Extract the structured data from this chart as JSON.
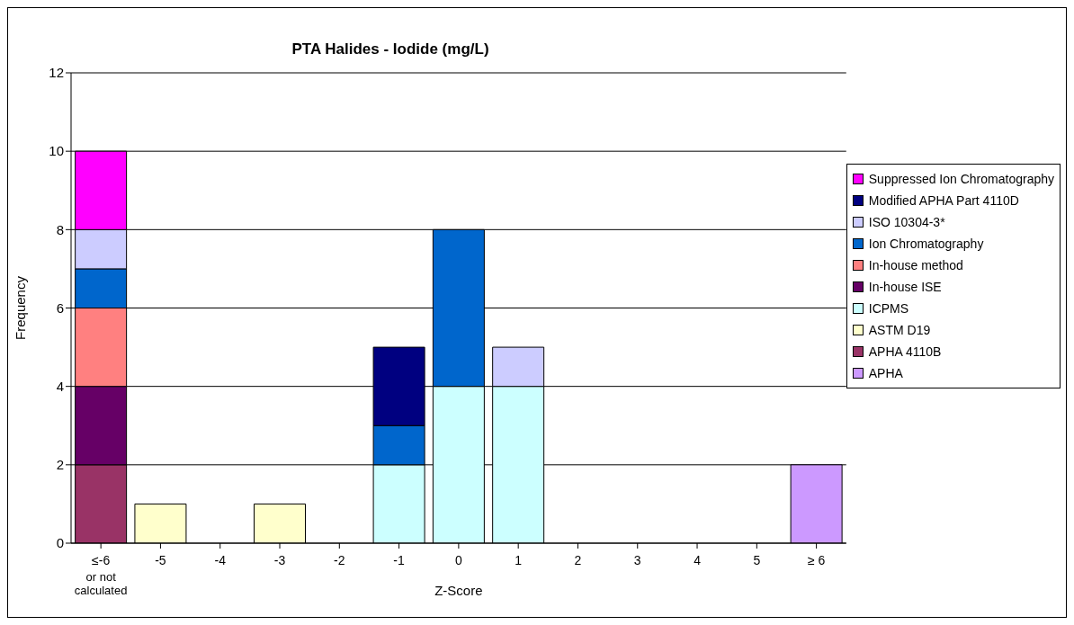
{
  "chart_data": {
    "type": "bar",
    "title": "PTA Halides - Iodide (mg/L)",
    "xlabel": "Z-Score",
    "ylabel": "Frequency",
    "categories": [
      "≤-6\nor not\ncalculated",
      "-5",
      "-4",
      "-3",
      "-2",
      "-1",
      "0",
      "1",
      "2",
      "3",
      "4",
      "5",
      "≥ 6"
    ],
    "stacked": true,
    "ylim": [
      0,
      12
    ],
    "yticks": [
      0,
      2,
      4,
      6,
      8,
      10,
      12
    ],
    "grid": "y",
    "legend": "right",
    "series": [
      {
        "name": "APHA",
        "color": "#cc99ff",
        "values": [
          null,
          null,
          null,
          null,
          null,
          null,
          null,
          null,
          null,
          null,
          null,
          null,
          2
        ]
      },
      {
        "name": "APHA 4110B",
        "color": "#993366",
        "values": [
          2,
          null,
          null,
          null,
          null,
          null,
          null,
          null,
          null,
          null,
          null,
          null,
          null
        ]
      },
      {
        "name": "ASTM D19",
        "color": "#ffffcc",
        "values": [
          null,
          1,
          null,
          1,
          null,
          null,
          null,
          null,
          null,
          null,
          null,
          null,
          null
        ]
      },
      {
        "name": "ICPMS",
        "color": "#ccffff",
        "values": [
          null,
          null,
          null,
          null,
          null,
          2,
          4,
          4,
          null,
          null,
          null,
          null,
          null
        ]
      },
      {
        "name": "In-house ISE",
        "color": "#660066",
        "values": [
          2,
          null,
          null,
          null,
          null,
          null,
          null,
          null,
          null,
          null,
          null,
          null,
          null
        ]
      },
      {
        "name": "In-house method",
        "color": "#ff8080",
        "values": [
          2,
          null,
          null,
          null,
          null,
          null,
          null,
          null,
          null,
          null,
          null,
          null,
          null
        ]
      },
      {
        "name": "Ion Chromatography",
        "color": "#0066cc",
        "values": [
          1,
          null,
          null,
          null,
          null,
          1,
          4,
          null,
          null,
          null,
          null,
          null,
          null
        ]
      },
      {
        "name": "ISO 10304-3*",
        "color": "#ccccff",
        "values": [
          1,
          null,
          null,
          null,
          null,
          null,
          null,
          1,
          null,
          null,
          null,
          null,
          null
        ]
      },
      {
        "name": "Modified APHA Part 4110D",
        "color": "#000080",
        "values": [
          null,
          null,
          null,
          null,
          null,
          2,
          null,
          null,
          null,
          null,
          null,
          null,
          null
        ]
      },
      {
        "name": "Suppressed Ion Chromatography",
        "color": "#ff00ff",
        "values": [
          2,
          null,
          null,
          null,
          null,
          null,
          null,
          null,
          null,
          null,
          null,
          null,
          null
        ]
      }
    ]
  }
}
